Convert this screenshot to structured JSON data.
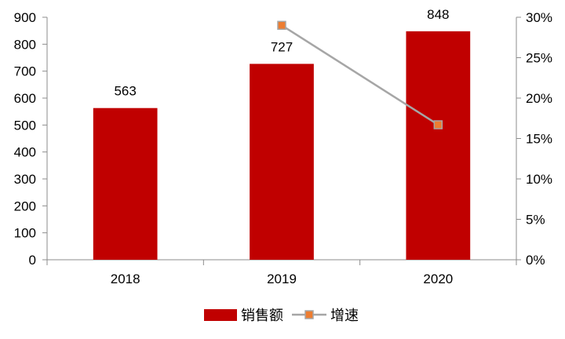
{
  "chart_data": {
    "type": "bar",
    "categories": [
      "2018",
      "2019",
      "2020"
    ],
    "series": [
      {
        "name": "销售额",
        "type": "bar",
        "axis": "left",
        "values": [
          563,
          727,
          848
        ],
        "data_labels": [
          "563",
          "727",
          "848"
        ],
        "color": "#c00000"
      },
      {
        "name": "增速",
        "type": "line",
        "axis": "right",
        "values": [
          null,
          0.29,
          0.167
        ],
        "line_color": "#a6a6a6",
        "marker_color": "#ed7d31"
      }
    ],
    "y_left": {
      "ylim": [
        0,
        900
      ],
      "ticks": [
        0,
        100,
        200,
        300,
        400,
        500,
        600,
        700,
        800,
        900
      ],
      "tick_labels": [
        "0",
        "100",
        "200",
        "300",
        "400",
        "500",
        "600",
        "700",
        "800",
        "900"
      ]
    },
    "y_right": {
      "ylim": [
        0,
        0.3
      ],
      "ticks": [
        0,
        0.05,
        0.1,
        0.15,
        0.2,
        0.25,
        0.3
      ],
      "tick_labels": [
        "0%",
        "5%",
        "10%",
        "15%",
        "20%",
        "25%",
        "30%"
      ]
    },
    "grid": false,
    "legend_position": "bottom"
  }
}
